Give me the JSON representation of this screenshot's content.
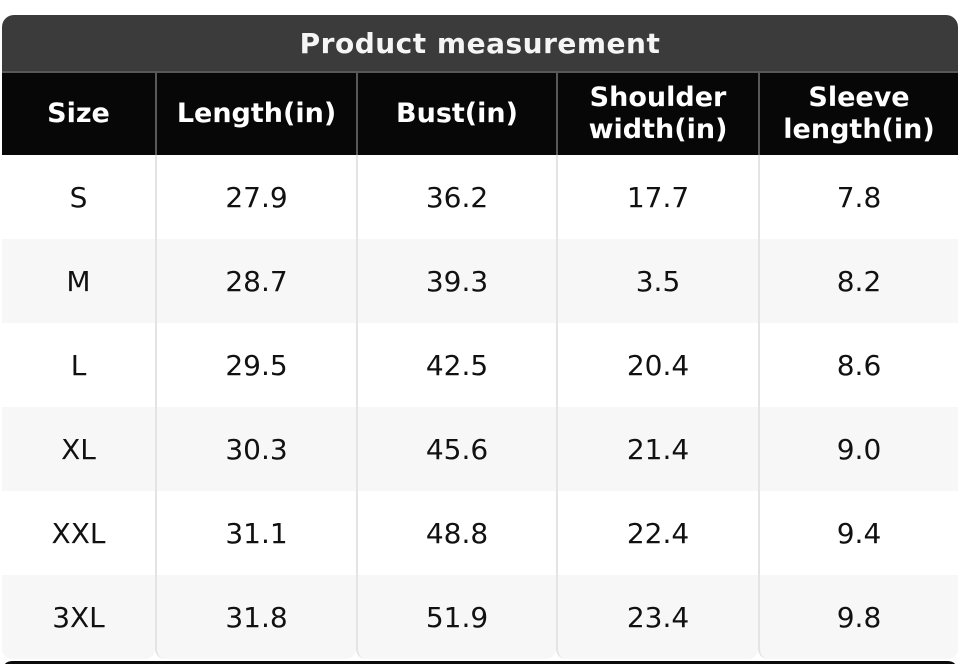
{
  "table": {
    "title": "Product measurement",
    "colors": {
      "title_bar_bg": "#3b3b3b",
      "header_bg": "#070707",
      "header_text": "#ffffff",
      "row_bg_odd": "#ffffff",
      "row_bg_even": "#f7f7f7",
      "data_text": "#111111",
      "header_divider": "#585858",
      "cell_divider": "#e4e4e4"
    }
  },
  "chart_data": {
    "type": "table",
    "title": "Product measurement",
    "columns": [
      "Size",
      "Length(in)",
      "Bust(in)",
      "Shoulder width(in)",
      "Sleeve length(in)"
    ],
    "rows": [
      [
        "S",
        "27.9",
        "36.2",
        "17.7",
        "7.8"
      ],
      [
        "M",
        "28.7",
        "39.3",
        "3.5",
        "8.2"
      ],
      [
        "L",
        "29.5",
        "42.5",
        "20.4",
        "8.6"
      ],
      [
        "XL",
        "30.3",
        "45.6",
        "21.4",
        "9.0"
      ],
      [
        "XXL",
        "31.1",
        "48.8",
        "22.4",
        "9.4"
      ],
      [
        "3XL",
        "31.8",
        "51.9",
        "23.4",
        "9.8"
      ]
    ],
    "layout": {
      "zebra_striping": true,
      "first_row_background": "white",
      "title_position": "top-center"
    }
  }
}
